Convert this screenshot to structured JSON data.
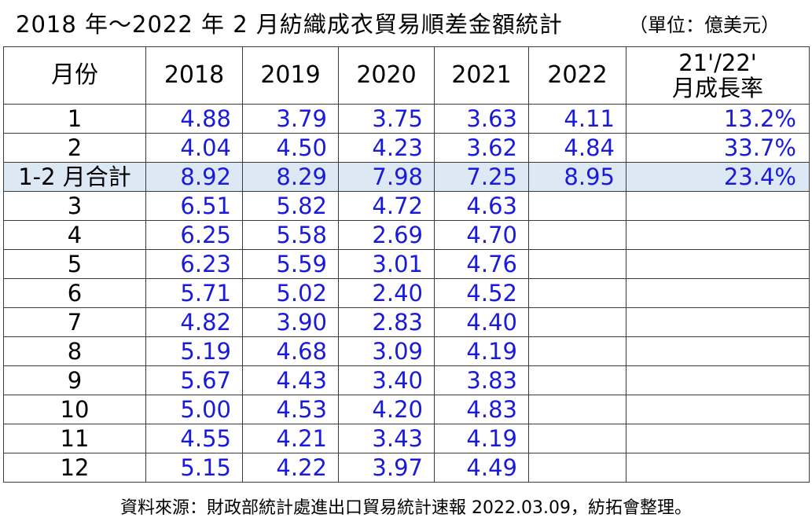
{
  "title": "2018 年～2022 年 2 月紡織成衣貿易順差金額統計",
  "unit": "（單位：億美元）",
  "table": {
    "headers": [
      "月份",
      "2018",
      "2019",
      "2020",
      "2021",
      "2022"
    ],
    "rate_header_line1": "21'/22'",
    "rate_header_line2": "月成長率",
    "rows": [
      {
        "month": "1",
        "values": [
          "4.88",
          "3.79",
          "3.75",
          "3.63",
          "4.11"
        ],
        "rate": "13.2%"
      },
      {
        "month": "2",
        "values": [
          "4.04",
          "4.50",
          "4.23",
          "3.62",
          "4.84"
        ],
        "rate": "33.7%"
      },
      {
        "month": "1-2 月合計",
        "values": [
          "8.92",
          "8.29",
          "7.98",
          "7.25",
          "8.95"
        ],
        "rate": "23.4%"
      },
      {
        "month": "3",
        "values": [
          "6.51",
          "5.82",
          "4.72",
          "4.63",
          ""
        ],
        "rate": ""
      },
      {
        "month": "4",
        "values": [
          "6.25",
          "5.58",
          "2.69",
          "4.70",
          ""
        ],
        "rate": ""
      },
      {
        "month": "5",
        "values": [
          "6.23",
          "5.59",
          "3.01",
          "4.76",
          ""
        ],
        "rate": ""
      },
      {
        "month": "6",
        "values": [
          "5.71",
          "5.02",
          "2.40",
          "4.52",
          ""
        ],
        "rate": ""
      },
      {
        "month": "7",
        "values": [
          "4.82",
          "3.90",
          "2.83",
          "4.40",
          ""
        ],
        "rate": ""
      },
      {
        "month": "8",
        "values": [
          "5.19",
          "4.68",
          "3.09",
          "4.19",
          ""
        ],
        "rate": ""
      },
      {
        "month": "9",
        "values": [
          "5.67",
          "4.43",
          "3.40",
          "3.83",
          ""
        ],
        "rate": ""
      },
      {
        "month": "10",
        "values": [
          "5.00",
          "4.53",
          "4.20",
          "4.83",
          ""
        ],
        "rate": ""
      },
      {
        "month": "11",
        "values": [
          "4.55",
          "4.21",
          "3.43",
          "4.19",
          ""
        ],
        "rate": ""
      },
      {
        "month": "12",
        "values": [
          "5.15",
          "4.22",
          "3.97",
          "4.49",
          ""
        ],
        "rate": ""
      }
    ]
  },
  "footer": "資料來源：財政部統計處進出口貿易統計速報 2022.03.09，紡拓會整理。",
  "colors": {
    "value_text": "#1a1adb",
    "highlight_row": "#dde8f5",
    "border": "#3a3a3a"
  }
}
